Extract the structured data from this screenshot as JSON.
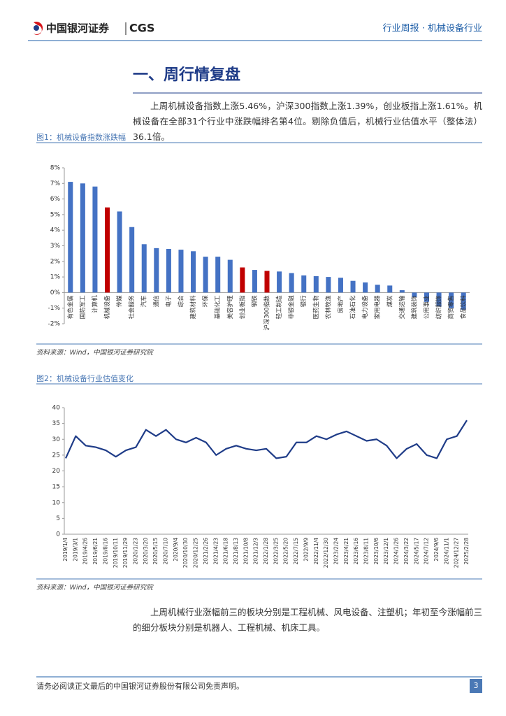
{
  "header": {
    "brand": "中国银河证券",
    "brand_en": "CGS",
    "right": "行业周报 · 机械设备行业"
  },
  "section_title": "一、周行情复盘",
  "paragraphs": [
    "上周机械设备指数上涨5.46%，沪深300指数上涨1.39%，创业板指上涨1.61%。机械设备在全部31个行业中涨跌幅排名第4位。剔除负值后，机械行业估值水平（整体法）36.1倍。",
    "上周机械行业涨幅前三的板块分别是工程机械、风电设备、注塑机；年初至今涨幅前三的细分板块分别是机器人、工程机械、机床工具。"
  ],
  "figures": [
    {
      "caption": "图1：机械设备指数涨跌幅",
      "source": "资料来源：Wind，中国银河证券研究院"
    },
    {
      "caption": "图2：机械设备行业估值变化",
      "source": "资料来源：Wind，中国银河证券研究院"
    }
  ],
  "footer": {
    "disclaimer": "请务必阅读正文最后的中国银河证券股份有限公司免责声明。",
    "page": "3"
  },
  "chart_data": [
    {
      "type": "bar",
      "categories": [
        "有色金属",
        "国防军工",
        "计算机",
        "机械设备",
        "传媒",
        "社会服务",
        "汽车",
        "通信",
        "电子",
        "综合",
        "建筑材料",
        "环保",
        "基础化工",
        "美容护理",
        "创业板指",
        "钢铁",
        "沪深300指数",
        "轻工制造",
        "非银金融",
        "银行",
        "医药生物",
        "农林牧渔",
        "房地产",
        "石油石化",
        "电力设备",
        "家用电器",
        "煤炭",
        "交通运输",
        "建筑装饰",
        "公用事业",
        "纺织服饰",
        "商贸零售",
        "食品饮料"
      ],
      "values": [
        7.1,
        7.0,
        6.8,
        5.46,
        5.2,
        4.2,
        3.1,
        2.85,
        2.8,
        2.75,
        2.65,
        2.3,
        2.3,
        2.1,
        1.61,
        1.45,
        1.39,
        1.35,
        1.25,
        1.1,
        1.05,
        1.0,
        0.95,
        0.75,
        0.65,
        0.5,
        0.45,
        0.15,
        -0.3,
        -0.6,
        -0.9,
        -1.0,
        -1.1
      ],
      "colors": [
        "#4472c4",
        "#4472c4",
        "#4472c4",
        "#c00000",
        "#4472c4",
        "#4472c4",
        "#4472c4",
        "#4472c4",
        "#4472c4",
        "#4472c4",
        "#4472c4",
        "#4472c4",
        "#4472c4",
        "#4472c4",
        "#c00000",
        "#4472c4",
        "#c00000",
        "#4472c4",
        "#4472c4",
        "#4472c4",
        "#4472c4",
        "#4472c4",
        "#4472c4",
        "#4472c4",
        "#4472c4",
        "#4472c4",
        "#4472c4",
        "#4472c4",
        "#4472c4",
        "#4472c4",
        "#4472c4",
        "#4472c4",
        "#4472c4"
      ],
      "ylim": [
        -2,
        8
      ],
      "yticks": [
        {
          "value": -2,
          "label": "-2%"
        },
        {
          "value": -1,
          "label": "-1%"
        },
        {
          "value": 0,
          "label": "0%"
        },
        {
          "value": 1,
          "label": "1%"
        },
        {
          "value": 2,
          "label": "2%"
        },
        {
          "value": 3,
          "label": "3%"
        },
        {
          "value": 4,
          "label": "4%"
        },
        {
          "value": 5,
          "label": "5%"
        },
        {
          "value": 6,
          "label": "6%"
        },
        {
          "value": 7,
          "label": "7%"
        },
        {
          "value": 8,
          "label": "8%"
        }
      ]
    },
    {
      "type": "line",
      "x": [
        "2019/1/4",
        "2019/3/1",
        "2019/4/26",
        "2019/6/21",
        "2019/8/16",
        "2019/10/11",
        "2019/11/29",
        "2020/1/23",
        "2020/3/20",
        "2020/5/15",
        "2020/7/10",
        "2020/9/4",
        "2020/10/30",
        "2020/12/25",
        "2021/2/26",
        "2021/4/23",
        "2021/6/18",
        "2021/8/13",
        "2021/10/8",
        "2021/12/3",
        "2022/1/28",
        "2022/3/25",
        "2022/5/20",
        "2022/7/15",
        "2022/9/9",
        "2022/11/4",
        "2022/12/30",
        "2023/2/24",
        "2023/4/21",
        "2023/6/16",
        "2023/8/11",
        "2023/10/6",
        "2023/12/1",
        "2024/1/26",
        "2024/3/22",
        "2024/5/17",
        "2024/7/12",
        "2024/9/6",
        "2024/11/1",
        "2024/12/27",
        "2025/2/28"
      ],
      "values": [
        24,
        31,
        28,
        27.5,
        26.5,
        24.5,
        26.5,
        27.5,
        33,
        31,
        33,
        30,
        29,
        30.5,
        29,
        25,
        27,
        28,
        27,
        26.5,
        27,
        24,
        24.5,
        29,
        29,
        31,
        30,
        31.5,
        32.5,
        31,
        29.5,
        30,
        28,
        24,
        27,
        28.5,
        25,
        24,
        30,
        31,
        36
      ],
      "color": "#1f3c88",
      "ylim": [
        0,
        40
      ],
      "yticks": [
        0,
        5,
        10,
        15,
        20,
        25,
        30,
        35,
        40
      ]
    }
  ]
}
